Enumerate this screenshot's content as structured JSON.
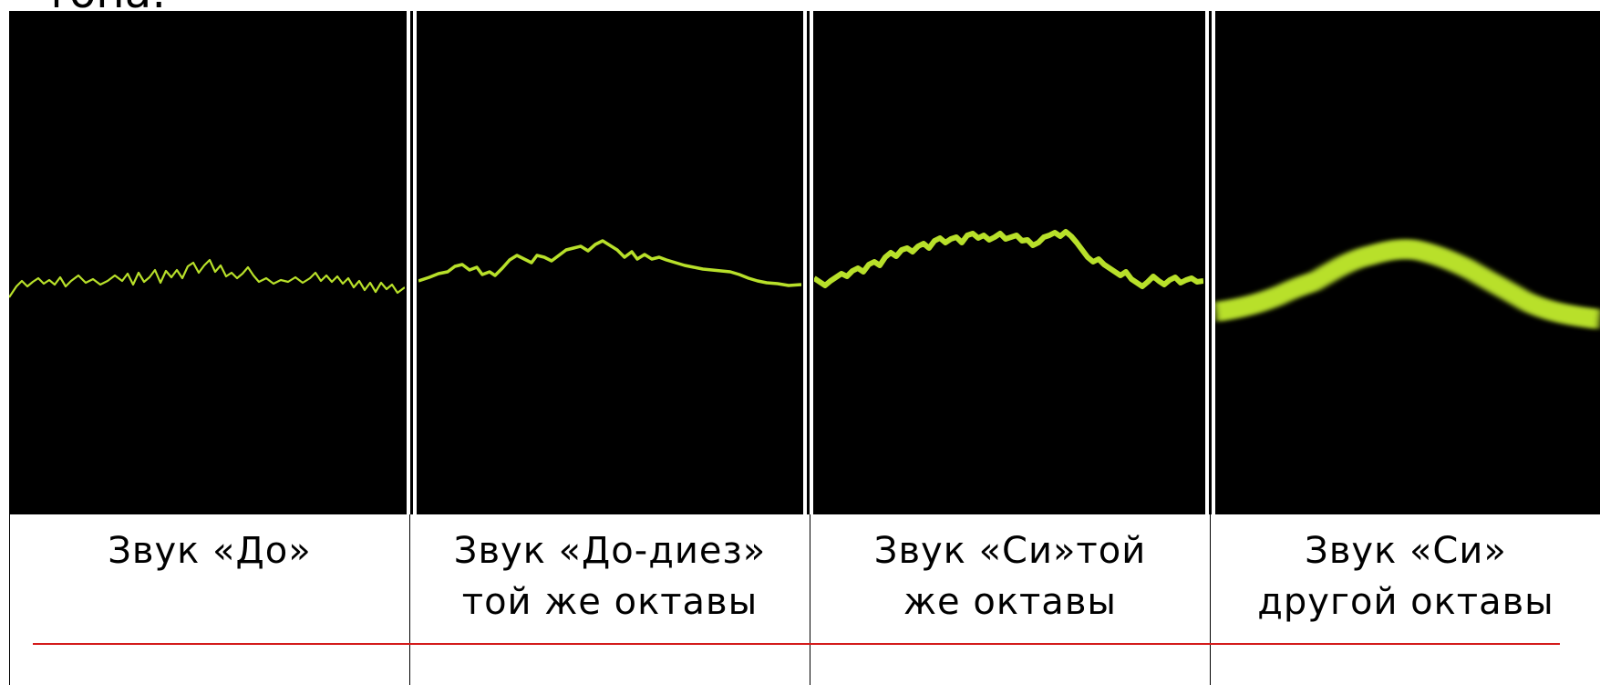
{
  "heading_fragment": "тона:",
  "colors": {
    "trace": "#b8e02a",
    "background": "#000000",
    "divider": "#d41c1c"
  },
  "panels": [
    {
      "caption_line1": "Звук «До»",
      "caption_line2": ""
    },
    {
      "caption_line1": "Звук «До-диез»",
      "caption_line2": "той же октавы"
    },
    {
      "caption_line1": "Звук «Си»той",
      "caption_line2": "же октавы"
    },
    {
      "caption_line1": "Звук «Си»",
      "caption_line2": "другой октавы"
    }
  ]
}
